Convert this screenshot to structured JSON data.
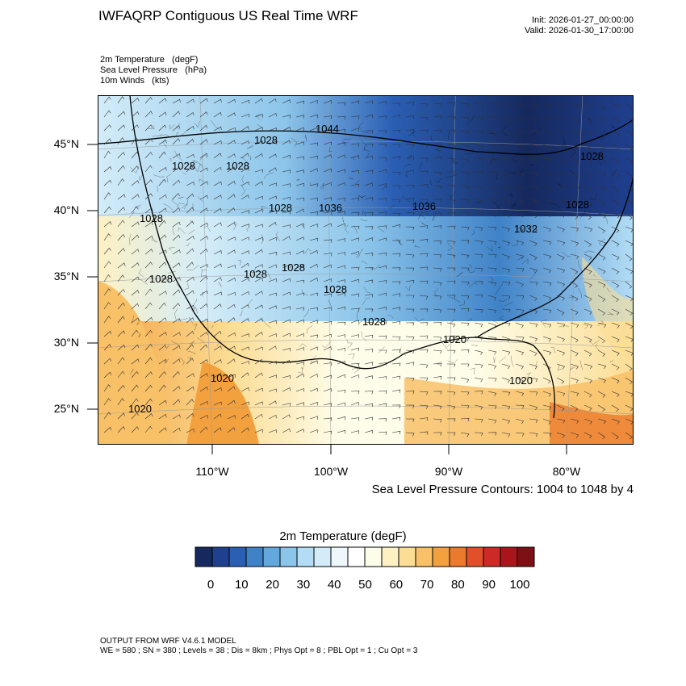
{
  "header": {
    "title": "IWFAQRP Contiguous US Real Time WRF",
    "init": "Init: 2026-01-27_00:00:00",
    "valid": "Valid: 2026-01-30_17:00:00"
  },
  "fields": [
    "2m Temperature   (degF)",
    "Sea Level Pressure   (hPa)",
    "10m Winds   (kts)"
  ],
  "map": {
    "lat_labels": [
      "45°N",
      "40°N",
      "35°N",
      "30°N",
      "25°N"
    ],
    "lon_labels": [
      "110°W",
      "100°W",
      "90°W",
      "80°W"
    ],
    "pressure_labels": [
      "1044",
      "1028",
      "1028",
      "1028",
      "1028",
      "1028",
      "1036",
      "1036",
      "1032",
      "1028",
      "1028",
      "1028",
      "1028",
      "1028",
      "1028",
      "1028",
      "1020",
      "1020",
      "1020",
      "1020"
    ],
    "slp_note": "Sea Level Pressure Contours: 1004 to 1048 by 4"
  },
  "colorbar": {
    "title": "2m Temperature  (degF)",
    "colors": [
      "#16295e",
      "#1f3f8f",
      "#2a5fb4",
      "#3f82c7",
      "#63a8dc",
      "#8cc5ea",
      "#b3ddf5",
      "#d3ecf8",
      "#eef7fb",
      "#ffffff",
      "#fefde9",
      "#fdf1c4",
      "#fbdd95",
      "#f8c168",
      "#f3a03f",
      "#eb7a2c",
      "#e0512b",
      "#cb2a26",
      "#a8161c",
      "#7d1014"
    ],
    "tick_labels": [
      "0",
      "10",
      "20",
      "30",
      "40",
      "50",
      "60",
      "70",
      "80",
      "90",
      "100"
    ]
  },
  "footer": {
    "line1": "OUTPUT FROM WRF V4.6.1 MODEL",
    "line2": "WE = 580 ; SN = 380 ; Levels = 38 ; Dis = 8km ; Phys Opt = 8 ; PBL Opt = 1 ; Cu Opt = 3"
  }
}
